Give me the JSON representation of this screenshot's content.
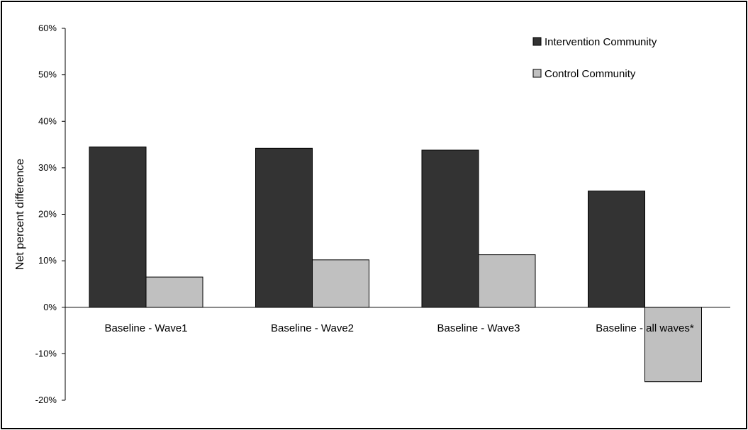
{
  "chart_data": {
    "type": "bar",
    "ylabel": "Net percent difference",
    "xlabel": "",
    "categories": [
      "Baseline - Wave1",
      "Baseline - Wave2",
      "Baseline - Wave3",
      "Baseline - all waves*"
    ],
    "series": [
      {
        "name": "Intervention Community",
        "color": "#333333",
        "values": [
          34.5,
          34.2,
          33.8,
          25.0
        ]
      },
      {
        "name": "Control Community",
        "color": "#c0c0c0",
        "values": [
          6.5,
          10.2,
          11.3,
          -16.0
        ]
      }
    ],
    "ylim": [
      -20,
      60
    ],
    "yticks": [
      -20,
      -10,
      0,
      10,
      20,
      30,
      40,
      50,
      60
    ],
    "ytick_labels": [
      "-20%",
      "-10%",
      "0%",
      "10%",
      "20%",
      "30%",
      "40%",
      "50%",
      "60%"
    ],
    "legend_position": "top-right",
    "grid": false
  }
}
